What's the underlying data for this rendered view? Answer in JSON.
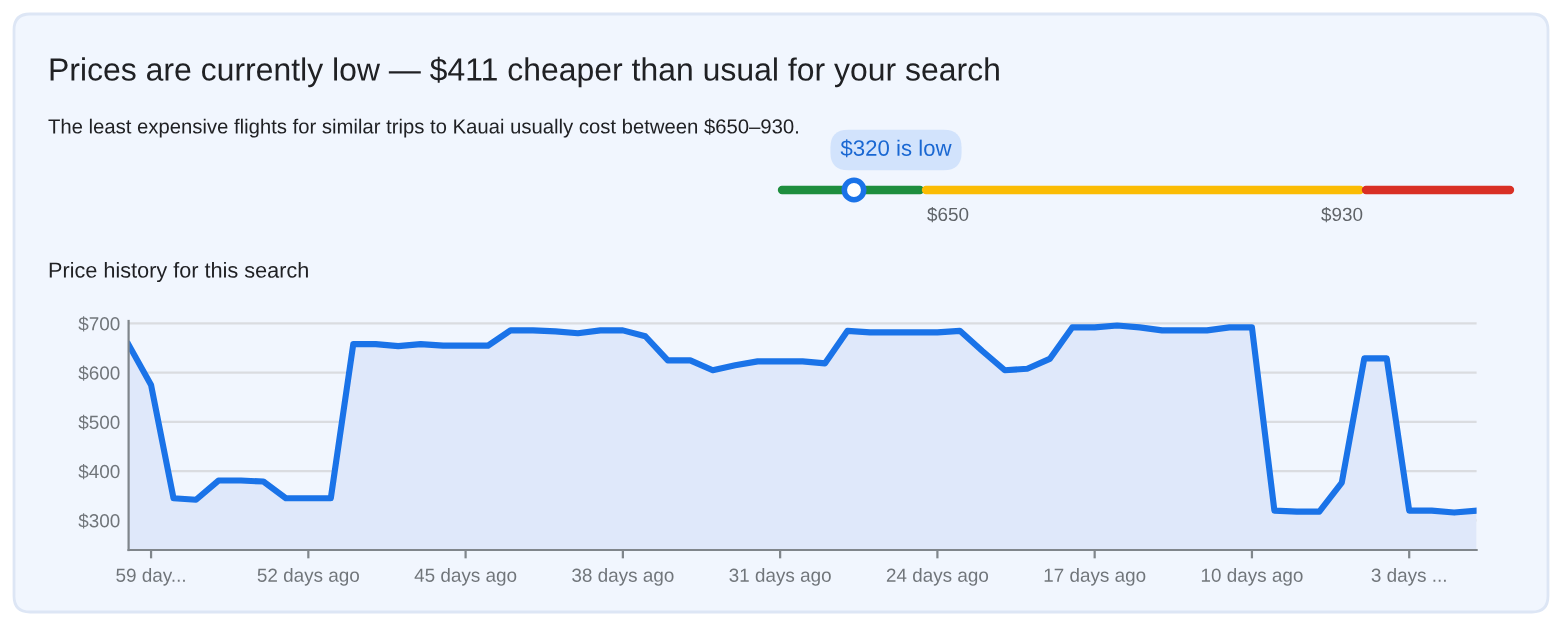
{
  "chart_data": [
    {
      "type": "other",
      "title": "Prices are currently low — $411 cheaper than usual for your search",
      "subtitle": "The least expensive flights for similar trips to Kauai usually cost between $650–930.",
      "annotations": [
        "$320 is low",
        "$650",
        "$930"
      ]
    },
    {
      "type": "area",
      "title": "Price history for this search",
      "color": "#1a73e8",
      "x": [
        60,
        59,
        58,
        57,
        56,
        55,
        54,
        53,
        52,
        51,
        50,
        49,
        48,
        47,
        46,
        45,
        44,
        43,
        42,
        41,
        40,
        39,
        38,
        37,
        36,
        35,
        34,
        33,
        32,
        31,
        30,
        29,
        28,
        27,
        26,
        25,
        24,
        23,
        22,
        21,
        20,
        19,
        18,
        17,
        16,
        15,
        14,
        13,
        12,
        11,
        10,
        9,
        8,
        7,
        6,
        5,
        4,
        3,
        2,
        1,
        0
      ],
      "values": [
        657,
        575,
        345,
        342,
        381,
        381,
        379,
        345,
        345,
        345,
        658,
        658,
        654,
        658,
        655,
        655,
        655,
        686,
        686,
        684,
        680,
        686,
        686,
        674,
        625,
        625,
        605,
        615,
        623,
        623,
        623,
        619,
        685,
        682,
        682,
        682,
        682,
        685,
        644,
        605,
        608,
        628,
        692,
        692,
        696,
        692,
        686,
        686,
        686,
        692,
        692,
        320,
        318,
        318,
        377,
        629,
        629,
        320,
        320,
        316,
        320
      ],
      "xlim": [
        60,
        0
      ],
      "xticks": [
        {
          "value": 59,
          "label": "59 day..."
        },
        {
          "value": 52,
          "label": "52 days ago"
        },
        {
          "value": 45,
          "label": "45 days ago"
        },
        {
          "value": 38,
          "label": "38 days ago"
        },
        {
          "value": 31,
          "label": "31 days ago"
        },
        {
          "value": 24,
          "label": "24 days ago"
        },
        {
          "value": 17,
          "label": "17 days ago"
        },
        {
          "value": 10,
          "label": "10 days ago"
        },
        {
          "value": 3,
          "label": "3 days ..."
        }
      ],
      "ylim": [
        240,
        705
      ],
      "yticks": [
        {
          "value": 300,
          "label": "$300"
        },
        {
          "value": 400,
          "label": "$400"
        },
        {
          "value": 500,
          "label": "$500"
        },
        {
          "value": 600,
          "label": "$600"
        },
        {
          "value": 700,
          "label": "$700"
        }
      ],
      "grid": "y",
      "marker": "none",
      "line_style": "solid",
      "legend": false
    }
  ]
}
